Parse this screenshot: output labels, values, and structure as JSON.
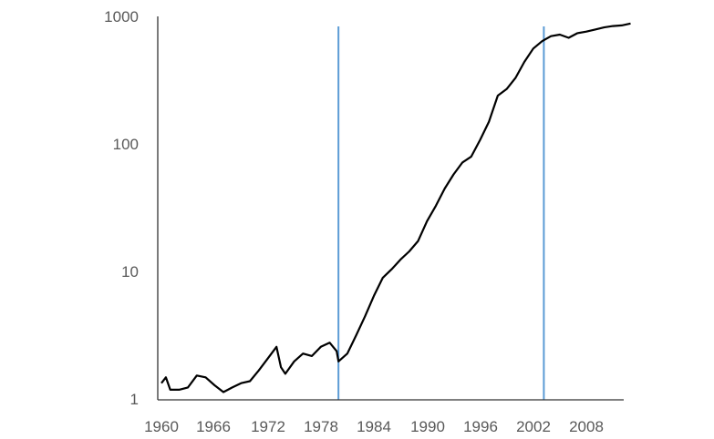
{
  "chart_data": {
    "type": "line",
    "title": "",
    "xlabel": "",
    "ylabel": "",
    "y_scale": "log",
    "xlim": [
      1960,
      2013
    ],
    "ylim": [
      1,
      1000
    ],
    "grid": false,
    "legend": "none",
    "x_ticks": [
      "1960",
      "1966",
      "1972",
      "1978",
      "1984",
      "1990",
      "1996",
      "2002",
      "2008"
    ],
    "y_ticks": [
      "1",
      "10",
      "100",
      "1000"
    ],
    "colors": {
      "series": "#000000",
      "markers": "#5b9bd5",
      "axis": "#333333",
      "tick_text": "#595959"
    },
    "vertical_markers": [
      1980,
      2003.2
    ],
    "series": [
      {
        "x": [
          1960,
          1960.5,
          1961,
          1962,
          1963,
          1964,
          1965,
          1966,
          1967,
          1968,
          1969,
          1970,
          1971,
          1972,
          1973,
          1973.5,
          1974,
          1975,
          1976,
          1977,
          1978,
          1979,
          1979.8,
          1980,
          1981,
          1982,
          1983,
          1984,
          1985,
          1986,
          1987,
          1988,
          1989,
          1990,
          1991,
          1992,
          1993,
          1994,
          1995,
          1996,
          1997,
          1998,
          1999,
          2000,
          2001,
          2002,
          2003,
          2004,
          2005,
          2006,
          2007,
          2008,
          2009,
          2010,
          2011,
          2012,
          2013
        ],
        "y": [
          1.35,
          1.5,
          1.2,
          1.2,
          1.25,
          1.55,
          1.5,
          1.3,
          1.15,
          1.25,
          1.35,
          1.4,
          1.7,
          2.1,
          2.6,
          1.8,
          1.6,
          2.0,
          2.3,
          2.2,
          2.6,
          2.8,
          2.4,
          2.0,
          2.3,
          3.2,
          4.5,
          6.5,
          9.0,
          10.5,
          12.5,
          14.5,
          17.5,
          25,
          33,
          45,
          58,
          72,
          80,
          108,
          150,
          240,
          270,
          330,
          440,
          560,
          640,
          700,
          720,
          680,
          740,
          760,
          790,
          820,
          840,
          850,
          880
        ]
      }
    ]
  }
}
